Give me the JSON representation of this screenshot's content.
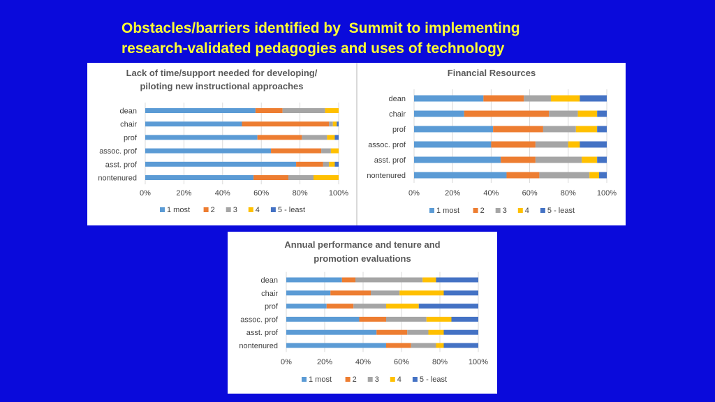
{
  "slide": {
    "title_line1": "Obstacles/barriers identified by  Summit to implementing",
    "title_line2": "research-validated pedagogies and uses of technology",
    "title_color": "#FFFF33",
    "background": "#0A0ADB"
  },
  "chart_data": [
    {
      "type": "bar",
      "orientation": "horizontal-stacked-100",
      "title_lines": [
        "Lack of time/support needed for developing/",
        "piloting new instructional approaches"
      ],
      "categories": [
        "dean",
        "chair",
        "prof",
        "assoc. prof",
        "asst. prof",
        "nontenured"
      ],
      "xticks": [
        "0%",
        "20%",
        "40%",
        "60%",
        "80%",
        "100%"
      ],
      "xlim": [
        0,
        100
      ],
      "legend_position": "bottom",
      "series": [
        {
          "name": "1 most",
          "color": "#5B9BD5",
          "values": [
            57,
            50,
            58,
            65,
            78,
            56
          ]
        },
        {
          "name": "2",
          "color": "#ED7D31",
          "values": [
            14,
            45,
            23,
            26,
            14,
            18
          ]
        },
        {
          "name": "3",
          "color": "#A5A5A5",
          "values": [
            22,
            2,
            13,
            5,
            3,
            13
          ]
        },
        {
          "name": "4",
          "color": "#FFC000",
          "values": [
            7,
            2,
            4,
            4,
            3,
            13
          ]
        },
        {
          "name": "5 - least",
          "color": "#4472C4",
          "values": [
            0,
            1,
            2,
            0,
            2,
            0
          ]
        }
      ]
    },
    {
      "type": "bar",
      "orientation": "horizontal-stacked-100",
      "title_lines": [
        "Financial Resources"
      ],
      "categories": [
        "dean",
        "chair",
        "prof",
        "assoc. prof",
        "asst. prof",
        "nontenured"
      ],
      "xticks": [
        "0%",
        "20%",
        "40%",
        "60%",
        "80%",
        "100%"
      ],
      "xlim": [
        0,
        100
      ],
      "legend_position": "bottom",
      "series": [
        {
          "name": "1 most",
          "color": "#5B9BD5",
          "values": [
            36,
            26,
            41,
            40,
            45,
            48
          ]
        },
        {
          "name": "2",
          "color": "#ED7D31",
          "values": [
            21,
            44,
            26,
            23,
            18,
            17
          ]
        },
        {
          "name": "3",
          "color": "#A5A5A5",
          "values": [
            14,
            15,
            17,
            17,
            24,
            26
          ]
        },
        {
          "name": "4",
          "color": "#FFC000",
          "values": [
            15,
            10,
            11,
            6,
            8,
            5
          ]
        },
        {
          "name": "5 - least",
          "color": "#4472C4",
          "values": [
            14,
            5,
            5,
            14,
            5,
            4
          ]
        }
      ]
    },
    {
      "type": "bar",
      "orientation": "horizontal-stacked-100",
      "title_lines": [
        "Annual performance and tenure and",
        "promotion evaluations"
      ],
      "categories": [
        "dean",
        "chair",
        "prof",
        "assoc. prof",
        "asst. prof",
        "nontenured"
      ],
      "xticks": [
        "0%",
        "20%",
        "40%",
        "60%",
        "80%",
        "100%"
      ],
      "xlim": [
        0,
        100
      ],
      "legend_position": "bottom",
      "series": [
        {
          "name": "1 most",
          "color": "#5B9BD5",
          "values": [
            29,
            23,
            21,
            38,
            47,
            52
          ]
        },
        {
          "name": "2",
          "color": "#ED7D31",
          "values": [
            7,
            21,
            14,
            14,
            16,
            13
          ]
        },
        {
          "name": "3",
          "color": "#A5A5A5",
          "values": [
            35,
            15,
            17,
            21,
            11,
            13
          ]
        },
        {
          "name": "4",
          "color": "#FFC000",
          "values": [
            7,
            23,
            17,
            13,
            8,
            4
          ]
        },
        {
          "name": "5 - least",
          "color": "#4472C4",
          "values": [
            22,
            18,
            31,
            14,
            18,
            18
          ]
        }
      ]
    }
  ]
}
